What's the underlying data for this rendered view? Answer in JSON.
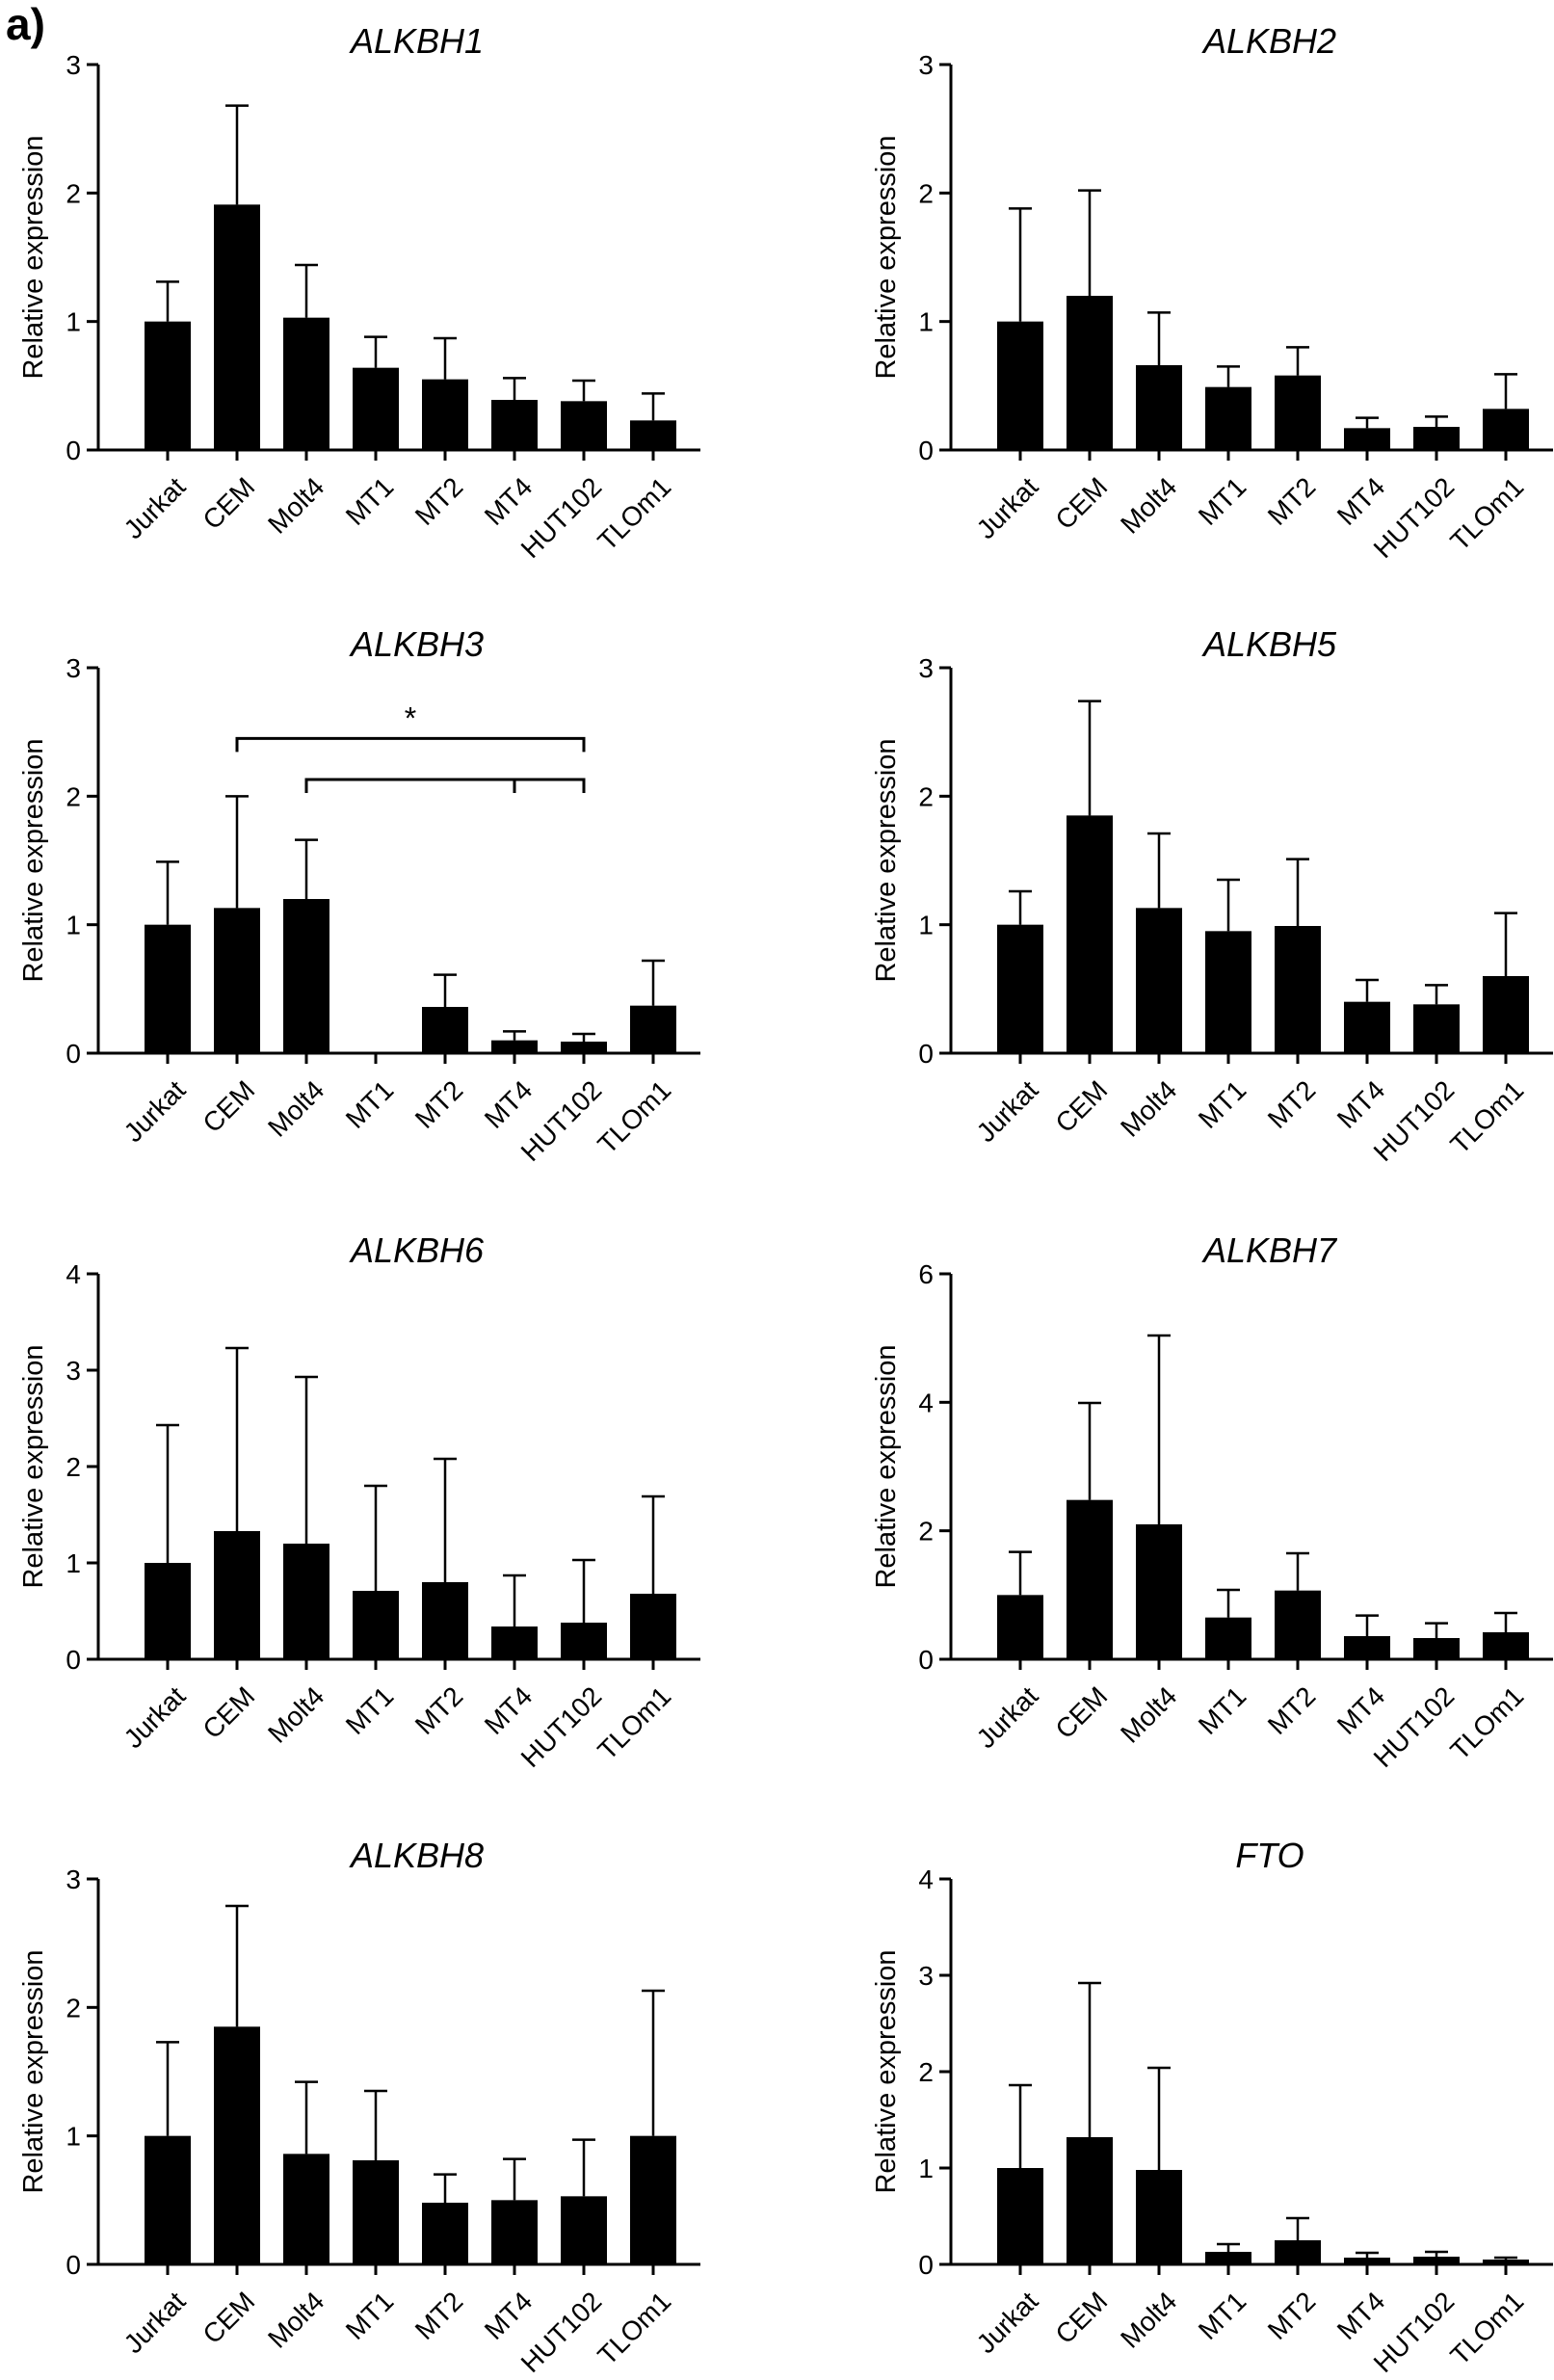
{
  "figure": {
    "panel_label": "a)"
  },
  "chart_data": [
    {
      "type": "bar",
      "title": "ALKBH1",
      "xlabel": "",
      "ylabel": "Relative expression",
      "categories": [
        "Jurkat",
        "CEM",
        "Molt4",
        "MT1",
        "MT2",
        "MT4",
        "HUT102",
        "TLOm1"
      ],
      "values": [
        1.0,
        1.91,
        1.03,
        0.64,
        0.55,
        0.39,
        0.38,
        0.23
      ],
      "error": [
        0.31,
        0.77,
        0.41,
        0.24,
        0.32,
        0.17,
        0.16,
        0.21
      ],
      "ylim": [
        0,
        3
      ],
      "yticks": [
        0,
        1,
        2,
        3
      ],
      "significance": []
    },
    {
      "type": "bar",
      "title": "ALKBH2",
      "xlabel": "",
      "ylabel": "Relative expression",
      "categories": [
        "Jurkat",
        "CEM",
        "Molt4",
        "MT1",
        "MT2",
        "MT4",
        "HUT102",
        "TLOm1"
      ],
      "values": [
        1.0,
        1.2,
        0.66,
        0.49,
        0.58,
        0.17,
        0.18,
        0.32
      ],
      "error": [
        0.88,
        0.82,
        0.41,
        0.16,
        0.22,
        0.08,
        0.08,
        0.27
      ],
      "ylim": [
        0,
        3
      ],
      "yticks": [
        0,
        1,
        2,
        3
      ],
      "significance": []
    },
    {
      "type": "bar",
      "title": "ALKBH3",
      "xlabel": "",
      "ylabel": "Relative expression",
      "categories": [
        "Jurkat",
        "CEM",
        "Molt4",
        "MT1",
        "MT2",
        "MT4",
        "HUT102",
        "TLOm1"
      ],
      "values": [
        1.0,
        1.13,
        1.2,
        0.0,
        0.36,
        0.1,
        0.09,
        0.37
      ],
      "error": [
        0.49,
        0.87,
        0.46,
        0.0,
        0.25,
        0.07,
        0.06,
        0.35
      ],
      "ylim": [
        0,
        3
      ],
      "yticks": [
        0,
        1,
        2,
        3
      ],
      "significance": [
        {
          "from": 1,
          "to": 6,
          "level": 2.45,
          "ticks": [],
          "label": "*"
        },
        {
          "from": 2,
          "to": 6,
          "level": 2.13,
          "ticks": [
            5
          ],
          "label": ""
        }
      ]
    },
    {
      "type": "bar",
      "title": "ALKBH5",
      "xlabel": "",
      "ylabel": "Relative expression",
      "categories": [
        "Jurkat",
        "CEM",
        "Molt4",
        "MT1",
        "MT2",
        "MT4",
        "HUT102",
        "TLOm1"
      ],
      "values": [
        1.0,
        1.85,
        1.13,
        0.95,
        0.99,
        0.4,
        0.38,
        0.6
      ],
      "error": [
        0.26,
        0.89,
        0.58,
        0.4,
        0.52,
        0.17,
        0.15,
        0.49
      ],
      "ylim": [
        0,
        3
      ],
      "yticks": [
        0,
        1,
        2,
        3
      ],
      "significance": []
    },
    {
      "type": "bar",
      "title": "ALKBH6",
      "xlabel": "",
      "ylabel": "Relative expression",
      "categories": [
        "Jurkat",
        "CEM",
        "Molt4",
        "MT1",
        "MT2",
        "MT4",
        "HUT102",
        "TLOm1"
      ],
      "values": [
        1.0,
        1.33,
        1.2,
        0.71,
        0.8,
        0.34,
        0.38,
        0.68
      ],
      "error": [
        1.43,
        1.9,
        1.73,
        1.09,
        1.28,
        0.53,
        0.65,
        1.01
      ],
      "ylim": [
        0,
        4
      ],
      "yticks": [
        0,
        1,
        2,
        3,
        4
      ],
      "significance": []
    },
    {
      "type": "bar",
      "title": "ALKBH7",
      "xlabel": "",
      "ylabel": "Relative expression",
      "categories": [
        "Jurkat",
        "CEM",
        "Molt4",
        "MT1",
        "MT2",
        "MT4",
        "HUT102",
        "TLOm1"
      ],
      "values": [
        1.0,
        2.48,
        2.1,
        0.65,
        1.07,
        0.36,
        0.33,
        0.42
      ],
      "error": [
        0.67,
        1.51,
        2.94,
        0.43,
        0.58,
        0.32,
        0.23,
        0.3
      ],
      "ylim": [
        0,
        6
      ],
      "yticks": [
        0,
        2,
        4,
        6
      ],
      "significance": []
    },
    {
      "type": "bar",
      "title": "ALKBH8",
      "xlabel": "",
      "ylabel": "Relative expression",
      "categories": [
        "Jurkat",
        "CEM",
        "Molt4",
        "MT1",
        "MT2",
        "MT4",
        "HUT102",
        "TLOm1"
      ],
      "values": [
        1.0,
        1.85,
        0.86,
        0.81,
        0.48,
        0.5,
        0.53,
        1.0
      ],
      "error": [
        0.73,
        0.94,
        0.56,
        0.54,
        0.22,
        0.32,
        0.44,
        1.13
      ],
      "ylim": [
        0,
        3
      ],
      "yticks": [
        0,
        1,
        2,
        3
      ],
      "significance": []
    },
    {
      "type": "bar",
      "title": "FTO",
      "xlabel": "",
      "ylabel": "Relative expression",
      "categories": [
        "Jurkat",
        "CEM",
        "Molt4",
        "MT1",
        "MT2",
        "MT4",
        "HUT102",
        "TLOm1"
      ],
      "values": [
        1.0,
        1.32,
        0.98,
        0.13,
        0.25,
        0.07,
        0.08,
        0.05
      ],
      "error": [
        0.86,
        1.6,
        1.06,
        0.08,
        0.23,
        0.05,
        0.05,
        0.02
      ],
      "ylim": [
        0,
        4
      ],
      "yticks": [
        0,
        1,
        2,
        3,
        4
      ],
      "significance": []
    }
  ]
}
